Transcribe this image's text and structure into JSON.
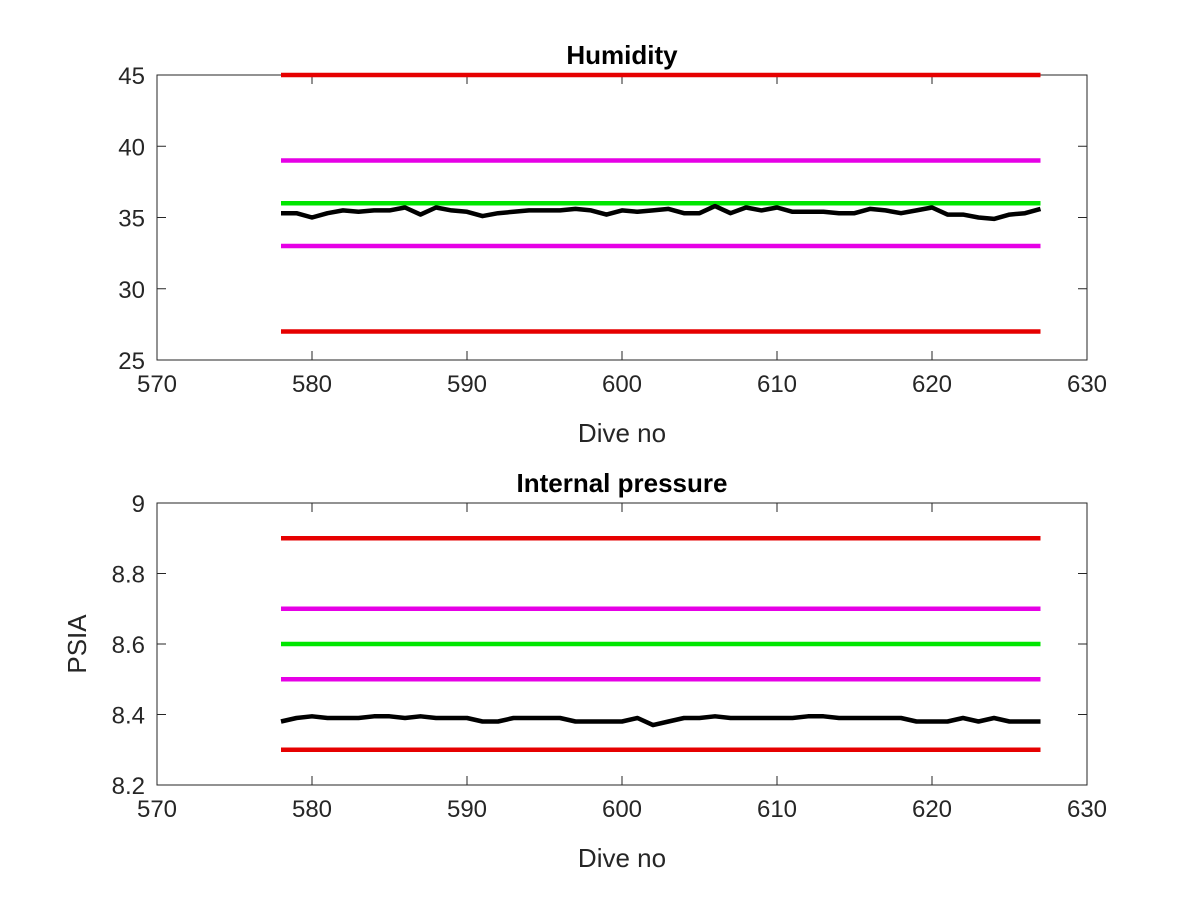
{
  "chart_data": [
    {
      "type": "line",
      "title": "Humidity",
      "xlabel": "Dive no",
      "ylabel": "",
      "xlim": [
        570,
        630
      ],
      "ylim": [
        25,
        45
      ],
      "xticks": [
        570,
        580,
        590,
        600,
        610,
        620,
        630
      ],
      "yticks": [
        25,
        30,
        35,
        40,
        45
      ],
      "grid": false,
      "series": [
        {
          "color": "#e60000",
          "x": [
            578,
            627
          ],
          "y": [
            45,
            45
          ]
        },
        {
          "color": "#e600e6",
          "x": [
            578,
            627
          ],
          "y": [
            39,
            39
          ]
        },
        {
          "color": "#00e600",
          "x": [
            578,
            627
          ],
          "y": [
            36,
            36
          ]
        },
        {
          "color": "#e600e6",
          "x": [
            578,
            627
          ],
          "y": [
            33,
            33
          ]
        },
        {
          "color": "#e60000",
          "x": [
            578,
            627
          ],
          "y": [
            27,
            27
          ]
        },
        {
          "color": "#000000",
          "x": [
            578,
            579,
            580,
            581,
            582,
            583,
            584,
            585,
            586,
            587,
            588,
            589,
            590,
            591,
            592,
            593,
            594,
            595,
            596,
            597,
            598,
            599,
            600,
            601,
            602,
            603,
            604,
            605,
            606,
            607,
            608,
            609,
            610,
            611,
            612,
            613,
            614,
            615,
            616,
            617,
            618,
            619,
            620,
            621,
            622,
            623,
            624,
            625,
            626,
            627
          ],
          "y": [
            35.3,
            35.3,
            35.0,
            35.3,
            35.5,
            35.4,
            35.5,
            35.5,
            35.7,
            35.2,
            35.7,
            35.5,
            35.4,
            35.1,
            35.3,
            35.4,
            35.5,
            35.5,
            35.5,
            35.6,
            35.5,
            35.2,
            35.5,
            35.4,
            35.5,
            35.6,
            35.3,
            35.3,
            35.8,
            35.3,
            35.7,
            35.5,
            35.7,
            35.4,
            35.4,
            35.4,
            35.3,
            35.3,
            35.6,
            35.5,
            35.3,
            35.5,
            35.7,
            35.2,
            35.2,
            35.0,
            34.9,
            35.2,
            35.3,
            35.6
          ]
        }
      ]
    },
    {
      "type": "line",
      "title": "Internal pressure",
      "xlabel": "Dive no",
      "ylabel": "PSIA",
      "xlim": [
        570,
        630
      ],
      "ylim": [
        8.2,
        9
      ],
      "xticks": [
        570,
        580,
        590,
        600,
        610,
        620,
        630
      ],
      "yticks": [
        8.2,
        8.4,
        8.6,
        8.8,
        9
      ],
      "grid": false,
      "series": [
        {
          "color": "#e60000",
          "x": [
            578,
            627
          ],
          "y": [
            8.9,
            8.9
          ]
        },
        {
          "color": "#e600e6",
          "x": [
            578,
            627
          ],
          "y": [
            8.7,
            8.7
          ]
        },
        {
          "color": "#00e600",
          "x": [
            578,
            627
          ],
          "y": [
            8.6,
            8.6
          ]
        },
        {
          "color": "#e600e6",
          "x": [
            578,
            627
          ],
          "y": [
            8.5,
            8.5
          ]
        },
        {
          "color": "#e60000",
          "x": [
            578,
            627
          ],
          "y": [
            8.3,
            8.3
          ]
        },
        {
          "color": "#000000",
          "x": [
            578,
            579,
            580,
            581,
            582,
            583,
            584,
            585,
            586,
            587,
            588,
            589,
            590,
            591,
            592,
            593,
            594,
            595,
            596,
            597,
            598,
            599,
            600,
            601,
            602,
            603,
            604,
            605,
            606,
            607,
            608,
            609,
            610,
            611,
            612,
            613,
            614,
            615,
            616,
            617,
            618,
            619,
            620,
            621,
            622,
            623,
            624,
            625,
            626,
            627
          ],
          "y": [
            8.38,
            8.39,
            8.395,
            8.39,
            8.39,
            8.39,
            8.395,
            8.395,
            8.39,
            8.395,
            8.39,
            8.39,
            8.39,
            8.38,
            8.38,
            8.39,
            8.39,
            8.39,
            8.39,
            8.38,
            8.38,
            8.38,
            8.38,
            8.39,
            8.37,
            8.38,
            8.39,
            8.39,
            8.395,
            8.39,
            8.39,
            8.39,
            8.39,
            8.39,
            8.395,
            8.395,
            8.39,
            8.39,
            8.39,
            8.39,
            8.39,
            8.38,
            8.38,
            8.38,
            8.39,
            8.38,
            8.39,
            8.38,
            8.38,
            8.38
          ]
        }
      ]
    }
  ]
}
